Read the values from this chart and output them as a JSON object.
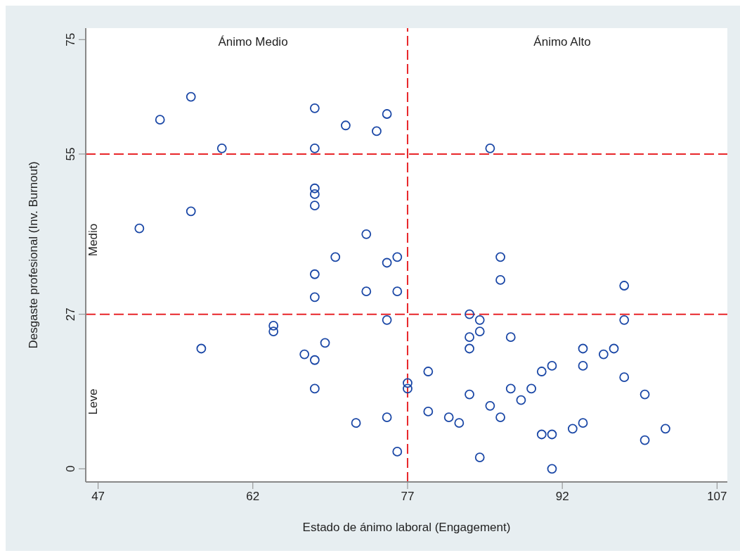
{
  "chart_data": {
    "type": "scatter",
    "xlabel": "Estado de ánimo laboral (Engagement)",
    "ylabel": "Desgaste profesional (Inv. Burnout)",
    "x": [
      51,
      53,
      56,
      56,
      57,
      59,
      64,
      64,
      67,
      68,
      68,
      68,
      68,
      68,
      68,
      68,
      68,
      68,
      69,
      70,
      71,
      72,
      73,
      73,
      74,
      75,
      75,
      75,
      75,
      76,
      76,
      76,
      77,
      77,
      79,
      79,
      81,
      82,
      83,
      83,
      83,
      83,
      84,
      84,
      84,
      85,
      85,
      86,
      86,
      86,
      87,
      87,
      88,
      89,
      90,
      90,
      91,
      91,
      91,
      93,
      94,
      94,
      94,
      96,
      97,
      98,
      98,
      98,
      100,
      100,
      102
    ],
    "series": [
      {
        "color": "#1a47a6",
        "values": [
          42,
          61,
          65,
          45,
          21,
          56,
          25,
          24,
          20,
          63,
          56,
          49,
          48,
          46,
          34,
          30,
          19,
          14,
          22,
          37,
          60,
          8,
          41,
          31,
          59,
          62,
          36,
          26,
          9,
          37,
          31,
          3,
          15,
          14,
          17,
          10,
          9,
          8,
          27,
          23,
          21,
          13,
          26,
          24,
          2,
          56,
          11,
          37,
          33,
          9,
          23,
          14,
          12,
          14,
          17,
          6,
          18,
          6,
          0,
          7,
          21,
          18,
          8,
          20,
          21,
          32,
          26,
          16,
          13,
          5,
          7
        ]
      }
    ],
    "xlim": [
      45.8,
      108
    ],
    "xticks": [
      47,
      62,
      77,
      92,
      107
    ],
    "ylim": [
      -2.3,
      77
    ],
    "yticks": [
      0,
      27,
      55,
      75
    ],
    "marker": "circle",
    "ref_lines": [
      {
        "axis": "x",
        "value": 77,
        "color": "#e8262a",
        "line_style": "dashed"
      },
      {
        "axis": "y",
        "value": 55,
        "color": "#e8262a",
        "line_style": "dashed"
      },
      {
        "axis": "y",
        "value": 27,
        "color": "#e8262a",
        "line_style": "dashed"
      }
    ],
    "annotations": [
      "Ánimo Medio",
      "Ánimo Alto",
      "Medio",
      "Leve"
    ]
  }
}
